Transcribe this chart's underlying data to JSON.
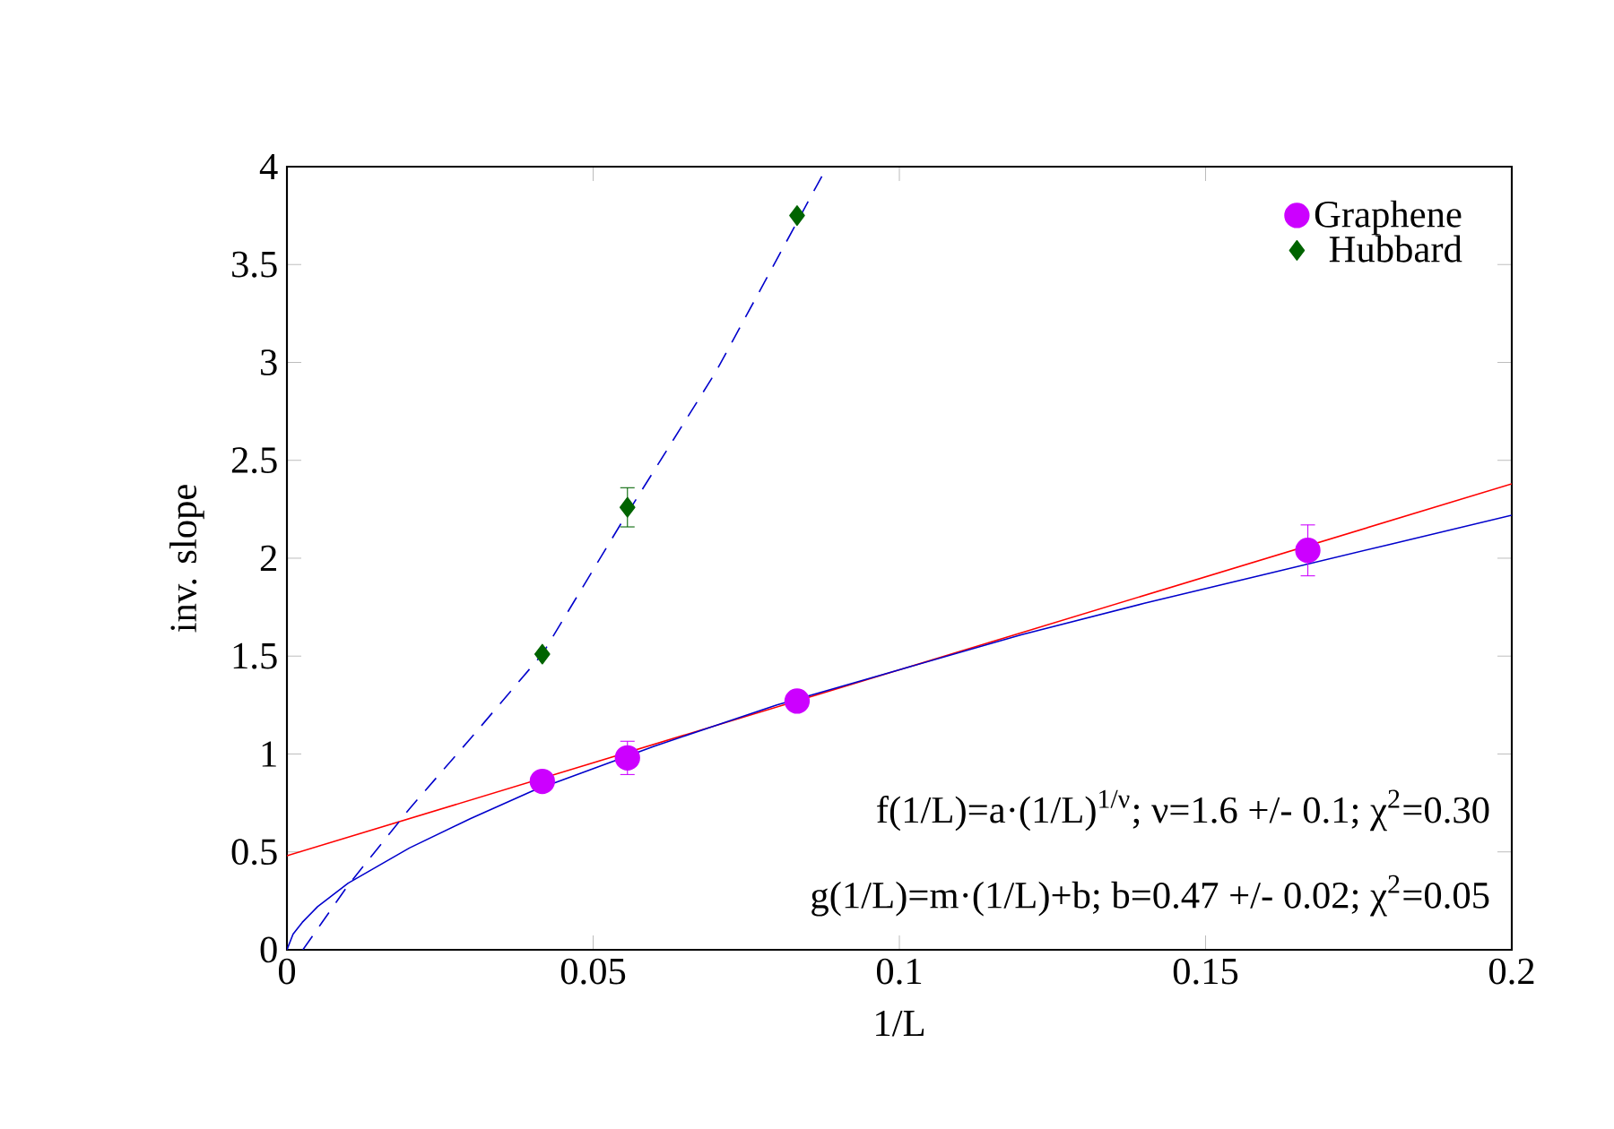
{
  "chart_data": {
    "type": "scatter",
    "xlabel": "1/L",
    "ylabel": "inv. slope",
    "xlim": [
      0,
      0.2
    ],
    "ylim": [
      0,
      4
    ],
    "xticks": [
      0,
      0.05,
      0.1,
      0.15,
      0.2
    ],
    "yticks": [
      0,
      0.5,
      1,
      1.5,
      2,
      2.5,
      3,
      3.5,
      4
    ],
    "legend": "top right",
    "grid": false,
    "series": [
      {
        "type": "line",
        "color": "#ff0000",
        "line_style": "solid",
        "marker": "none",
        "x": [
          0,
          0.2
        ],
        "values": [
          0.48,
          2.38
        ]
      },
      {
        "type": "line",
        "color": "#0000cc",
        "line_style": "solid",
        "marker": "none",
        "x": [
          0,
          0.001,
          0.0025,
          0.005,
          0.01,
          0.02,
          0.03,
          0.04,
          0.06,
          0.08,
          0.1,
          0.12,
          0.14,
          0.16,
          0.18,
          0.2
        ],
        "values": [
          0,
          0.08,
          0.14,
          0.22,
          0.34,
          0.52,
          0.67,
          0.81,
          1.04,
          1.25,
          1.43,
          1.61,
          1.77,
          1.92,
          2.07,
          2.22
        ]
      },
      {
        "type": "line",
        "color": "#0000cc",
        "line_style": "dashed",
        "marker": "none",
        "x": [
          0.0026,
          0.01,
          0.02,
          0.03,
          0.0417,
          0.055,
          0.07,
          0.0882
        ],
        "values": [
          0,
          0.33,
          0.72,
          1.08,
          1.51,
          2.2,
          2.95,
          4
        ]
      },
      {
        "name": "Graphene",
        "color": "#cc00ff",
        "marker": "circle",
        "x": [
          0.0417,
          0.0556,
          0.0833,
          0.1667
        ],
        "values": [
          0.86,
          0.98,
          1.27,
          2.04
        ],
        "errors": [
          null,
          0.085,
          null,
          0.13
        ]
      },
      {
        "name": "Hubbard",
        "color": "#006400",
        "marker": "diamond",
        "x": [
          0.0417,
          0.0556,
          0.0833
        ],
        "values": [
          1.51,
          2.26,
          3.75
        ],
        "errors": [
          null,
          0.1,
          null
        ]
      }
    ],
    "annotations": [
      "f(1/L)=a·(1/L)$^{1/ν}$; ν=1.6 +/- 0.1; χ$^{2}$=0.30",
      "g(1/L)=m·(1/L)+b; b=0.47 +/- 0.02; χ$^{2}$=0.05"
    ]
  }
}
